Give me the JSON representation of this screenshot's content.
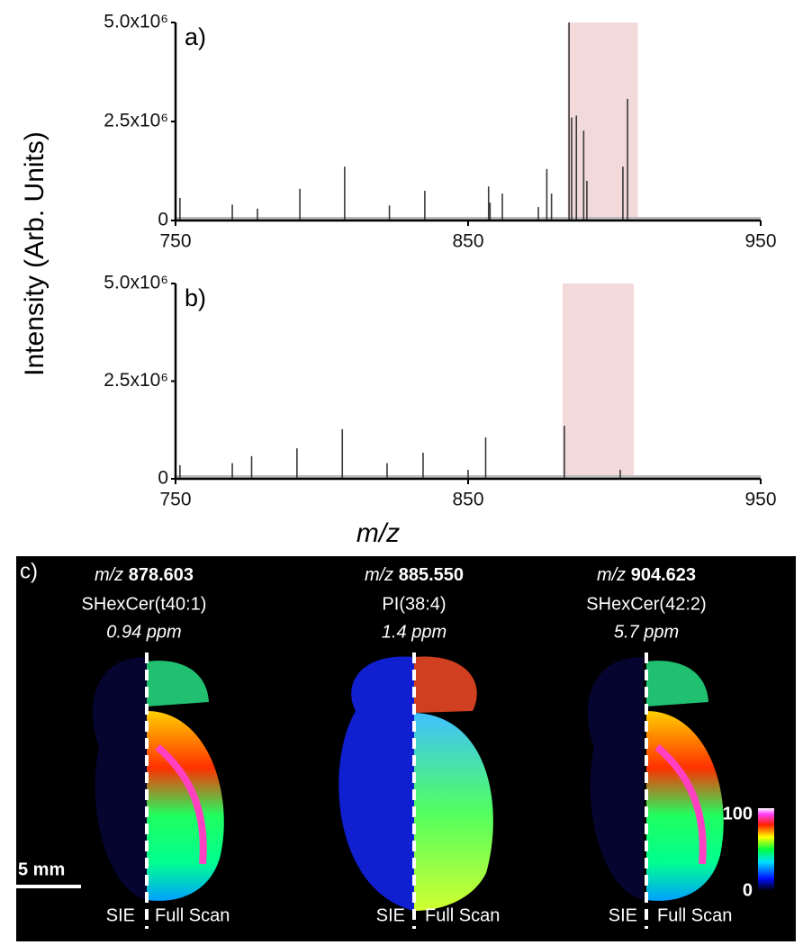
{
  "chart_data": [
    {
      "type": "bar",
      "label": "a)",
      "ylabel": "Intensity (Arb. Units)",
      "x": [
        751.5,
        769.4,
        778,
        792.5,
        807.8,
        823.1,
        835.2,
        857,
        857.5,
        861.7,
        874,
        876.9,
        878.5,
        884.5,
        885.4,
        887,
        889.5,
        890.6,
        902.9,
        904.5
      ],
      "values": [
        570000,
        400000,
        300000,
        800000,
        1360000,
        380000,
        750000,
        860000,
        450000,
        680000,
        340000,
        1300000,
        680000,
        5000000,
        2600000,
        2650000,
        2270000,
        1000000,
        1360000,
        3070000
      ],
      "color": "#3a3a3a",
      "highlight": [
        884,
        908
      ],
      "highlight_color": "#f3dada",
      "xlim": [
        750,
        950
      ],
      "xticks": [
        750,
        850,
        950
      ],
      "ylim": [
        0,
        5000000
      ],
      "yticks": [
        0,
        {
          "value": 2500000,
          "label": "2.5x10⁶"
        },
        {
          "value": 5000000,
          "label": "5.0x10⁶"
        }
      ]
    },
    {
      "type": "bar",
      "label": "b)",
      "xlabel": "m/z",
      "x": [
        751.5,
        769.4,
        776,
        791.5,
        807,
        822.3,
        834.6,
        850,
        856,
        882.9,
        902
      ],
      "values": [
        350000,
        400000,
        580000,
        780000,
        1270000,
        400000,
        670000,
        230000,
        1060000,
        1360000,
        230000
      ],
      "color": "#3a3a3a",
      "highlight": [
        882.3,
        906.6
      ],
      "highlight_color": "#f3dada",
      "xlim": [
        750,
        950
      ],
      "xticks": [
        750,
        850,
        950
      ],
      "ylim": [
        0,
        5000000
      ],
      "yticks": [
        0,
        {
          "value": 2500000,
          "label": "2.5x10⁶"
        },
        {
          "value": 5000000,
          "label": "5.0x10⁶"
        }
      ]
    }
  ],
  "panel_c": {
    "label": "c)",
    "images": [
      {
        "mz_prefix": "m/z",
        "mz": "878.603",
        "name": "SHexCer(t40:1)",
        "ppm": "0.94 ppm",
        "left": "SIE",
        "right": "Full Scan"
      },
      {
        "mz_prefix": "m/z",
        "mz": "885.550",
        "name": "PI(38:4)",
        "ppm": "1.4 ppm",
        "left": "SIE",
        "right": "Full Scan"
      },
      {
        "mz_prefix": "m/z",
        "mz": "904.623",
        "name": "SHexCer(42:2)",
        "ppm": "5.7 ppm",
        "left": "SIE",
        "right": "Full Scan"
      }
    ],
    "scale_bar": "5 mm",
    "colorbar_max": 100,
    "colorbar_min": 0
  }
}
